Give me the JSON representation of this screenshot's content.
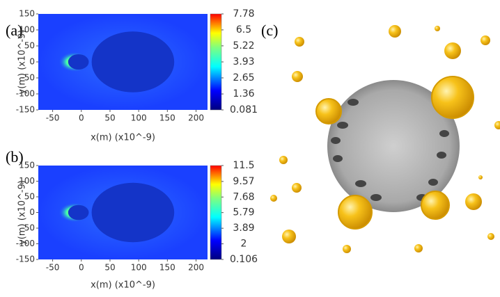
{
  "chart_data": [
    {
      "type": "heatmap",
      "panel_label": "(a)",
      "x_label": "x(m) (x10^-9)",
      "y_label": "y(m) (x10^-9)",
      "xlim": [
        -75,
        220
      ],
      "xticks": [
        -50,
        0,
        50,
        100,
        150,
        200
      ],
      "ylim": [
        -150,
        150
      ],
      "yticks": [
        -150,
        -100,
        -50,
        0,
        50,
        100,
        150
      ],
      "clim": [
        0.081,
        7.78
      ],
      "cticks": [
        0.081,
        1.36,
        2.65,
        3.93,
        5.22,
        6.5,
        7.78
      ]
    },
    {
      "type": "heatmap",
      "panel_label": "(b)",
      "x_label": "x(m) (x10^-9)",
      "y_label": "y(m) (x10^-9)",
      "xlim": [
        -75,
        220
      ],
      "xticks": [
        -50,
        0,
        50,
        100,
        150,
        200
      ],
      "ylim": [
        -150,
        150
      ],
      "yticks": [
        -150,
        -100,
        -50,
        0,
        50,
        100,
        150
      ],
      "clim": [
        0.106,
        11.5
      ],
      "cticks": [
        0.106,
        2,
        3.89,
        5.79,
        7.68,
        9.57,
        11.5
      ]
    }
  ],
  "image_panel": {
    "label": "(c)"
  }
}
